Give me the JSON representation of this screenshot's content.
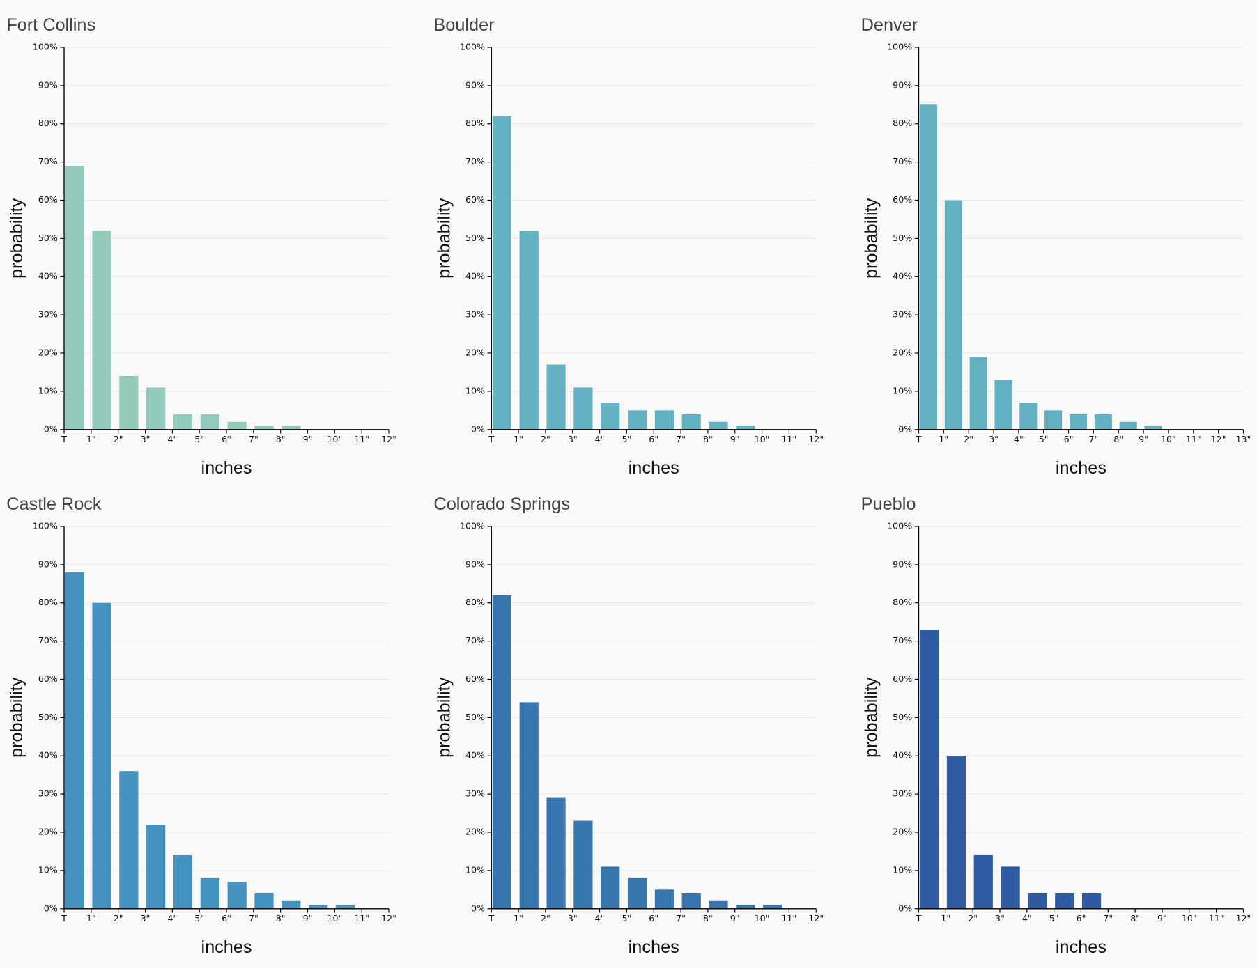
{
  "chart_data": [
    {
      "type": "histogram",
      "title": "Fort Collins",
      "xlabel": "inches",
      "ylabel": "probability",
      "color": "#93cbbd",
      "grid": true,
      "bins": [
        "T",
        "1\"",
        "2\"",
        "3\"",
        "4\"",
        "5\"",
        "6\"",
        "7\"",
        "8\"",
        "9\"",
        "10\"",
        "11\"",
        "12\""
      ],
      "values": [
        69,
        52,
        14,
        11,
        4,
        4,
        2,
        1,
        1,
        0,
        0,
        0
      ],
      "ylim": [
        0,
        100
      ],
      "yticks": [
        {
          "value": 0,
          "label": "0%"
        },
        {
          "value": 10,
          "label": "10%"
        },
        {
          "value": 20,
          "label": "20%"
        },
        {
          "value": 30,
          "label": "30%"
        },
        {
          "value": 40,
          "label": "40%"
        },
        {
          "value": 50,
          "label": "50%"
        },
        {
          "value": 60,
          "label": "60%"
        },
        {
          "value": 70,
          "label": "70%"
        },
        {
          "value": 80,
          "label": "80%"
        },
        {
          "value": 90,
          "label": "90%"
        },
        {
          "value": 100,
          "label": "100%"
        }
      ]
    },
    {
      "type": "histogram",
      "title": "Boulder",
      "xlabel": "inches",
      "ylabel": "probability",
      "color": "#63b2c3",
      "grid": true,
      "bins": [
        "T",
        "1\"",
        "2\"",
        "3\"",
        "4\"",
        "5\"",
        "6\"",
        "7\"",
        "8\"",
        "9\"",
        "10\"",
        "11\"",
        "12\""
      ],
      "values": [
        82,
        52,
        17,
        11,
        7,
        5,
        5,
        4,
        2,
        1,
        0,
        0
      ],
      "ylim": [
        0,
        100
      ],
      "yticks": [
        {
          "value": 0,
          "label": "0%"
        },
        {
          "value": 10,
          "label": "10%"
        },
        {
          "value": 20,
          "label": "20%"
        },
        {
          "value": 30,
          "label": "30%"
        },
        {
          "value": 40,
          "label": "40%"
        },
        {
          "value": 50,
          "label": "50%"
        },
        {
          "value": 60,
          "label": "60%"
        },
        {
          "value": 70,
          "label": "70%"
        },
        {
          "value": 80,
          "label": "80%"
        },
        {
          "value": 90,
          "label": "90%"
        },
        {
          "value": 100,
          "label": "100%"
        }
      ]
    },
    {
      "type": "histogram",
      "title": "Denver",
      "xlabel": "inches",
      "ylabel": "probability",
      "color": "#63b0c2",
      "grid": true,
      "bins": [
        "T",
        "1\"",
        "2\"",
        "3\"",
        "4\"",
        "5\"",
        "6\"",
        "7\"",
        "8\"",
        "9\"",
        "10\"",
        "11\"",
        "12\"",
        "13\""
      ],
      "values": [
        85,
        60,
        19,
        13,
        7,
        5,
        4,
        4,
        2,
        1,
        0,
        0,
        0
      ],
      "ylim": [
        0,
        100
      ],
      "yticks": [
        {
          "value": 0,
          "label": "0%"
        },
        {
          "value": 10,
          "label": "10%"
        },
        {
          "value": 20,
          "label": "20%"
        },
        {
          "value": 30,
          "label": "30%"
        },
        {
          "value": 40,
          "label": "40%"
        },
        {
          "value": 50,
          "label": "50%"
        },
        {
          "value": 60,
          "label": "60%"
        },
        {
          "value": 70,
          "label": "70%"
        },
        {
          "value": 80,
          "label": "80%"
        },
        {
          "value": 90,
          "label": "90%"
        },
        {
          "value": 100,
          "label": "100%"
        }
      ]
    },
    {
      "type": "histogram",
      "title": "Castle Rock",
      "xlabel": "inches",
      "ylabel": "probability",
      "color": "#4591bf",
      "grid": true,
      "bins": [
        "T",
        "1\"",
        "2\"",
        "3\"",
        "4\"",
        "5\"",
        "6\"",
        "7\"",
        "8\"",
        "9\"",
        "10\"",
        "11\"",
        "12\""
      ],
      "values": [
        88,
        80,
        36,
        22,
        14,
        8,
        7,
        4,
        2,
        1,
        1,
        0
      ],
      "ylim": [
        0,
        100
      ],
      "yticks": [
        {
          "value": 0,
          "label": "0%"
        },
        {
          "value": 10,
          "label": "10%"
        },
        {
          "value": 20,
          "label": "20%"
        },
        {
          "value": 30,
          "label": "30%"
        },
        {
          "value": 40,
          "label": "40%"
        },
        {
          "value": 50,
          "label": "50%"
        },
        {
          "value": 60,
          "label": "60%"
        },
        {
          "value": 70,
          "label": "70%"
        },
        {
          "value": 80,
          "label": "80%"
        },
        {
          "value": 90,
          "label": "90%"
        },
        {
          "value": 100,
          "label": "100%"
        }
      ]
    },
    {
      "type": "histogram",
      "title": "Colorado Springs",
      "xlabel": "inches",
      "ylabel": "probability",
      "color": "#3775ae",
      "grid": true,
      "bins": [
        "T",
        "1\"",
        "2\"",
        "3\"",
        "4\"",
        "5\"",
        "6\"",
        "7\"",
        "8\"",
        "9\"",
        "10\"",
        "11\"",
        "12\""
      ],
      "values": [
        82,
        54,
        29,
        23,
        11,
        8,
        5,
        4,
        2,
        1,
        1,
        0
      ],
      "ylim": [
        0,
        100
      ],
      "yticks": [
        {
          "value": 0,
          "label": "0%"
        },
        {
          "value": 10,
          "label": "10%"
        },
        {
          "value": 20,
          "label": "20%"
        },
        {
          "value": 30,
          "label": "30%"
        },
        {
          "value": 40,
          "label": "40%"
        },
        {
          "value": 50,
          "label": "50%"
        },
        {
          "value": 60,
          "label": "60%"
        },
        {
          "value": 70,
          "label": "70%"
        },
        {
          "value": 80,
          "label": "80%"
        },
        {
          "value": 90,
          "label": "90%"
        },
        {
          "value": 100,
          "label": "100%"
        }
      ]
    },
    {
      "type": "histogram",
      "title": "Pueblo",
      "xlabel": "inches",
      "ylabel": "probability",
      "color": "#2f5ba1",
      "grid": true,
      "bins": [
        "T",
        "1\"",
        "2\"",
        "3\"",
        "4\"",
        "5\"",
        "6\"",
        "7\"",
        "8\"",
        "9\"",
        "10\"",
        "11\"",
        "12\""
      ],
      "values": [
        73,
        40,
        14,
        11,
        4,
        4,
        4,
        0,
        0,
        0,
        0,
        0
      ],
      "ylim": [
        0,
        100
      ],
      "yticks": [
        {
          "value": 0,
          "label": "0%"
        },
        {
          "value": 10,
          "label": "10%"
        },
        {
          "value": 20,
          "label": "20%"
        },
        {
          "value": 30,
          "label": "30%"
        },
        {
          "value": 40,
          "label": "40%"
        },
        {
          "value": 50,
          "label": "50%"
        },
        {
          "value": 60,
          "label": "60%"
        },
        {
          "value": 70,
          "label": "70%"
        },
        {
          "value": 80,
          "label": "80%"
        },
        {
          "value": 90,
          "label": "90%"
        },
        {
          "value": 100,
          "label": "100%"
        }
      ]
    }
  ]
}
